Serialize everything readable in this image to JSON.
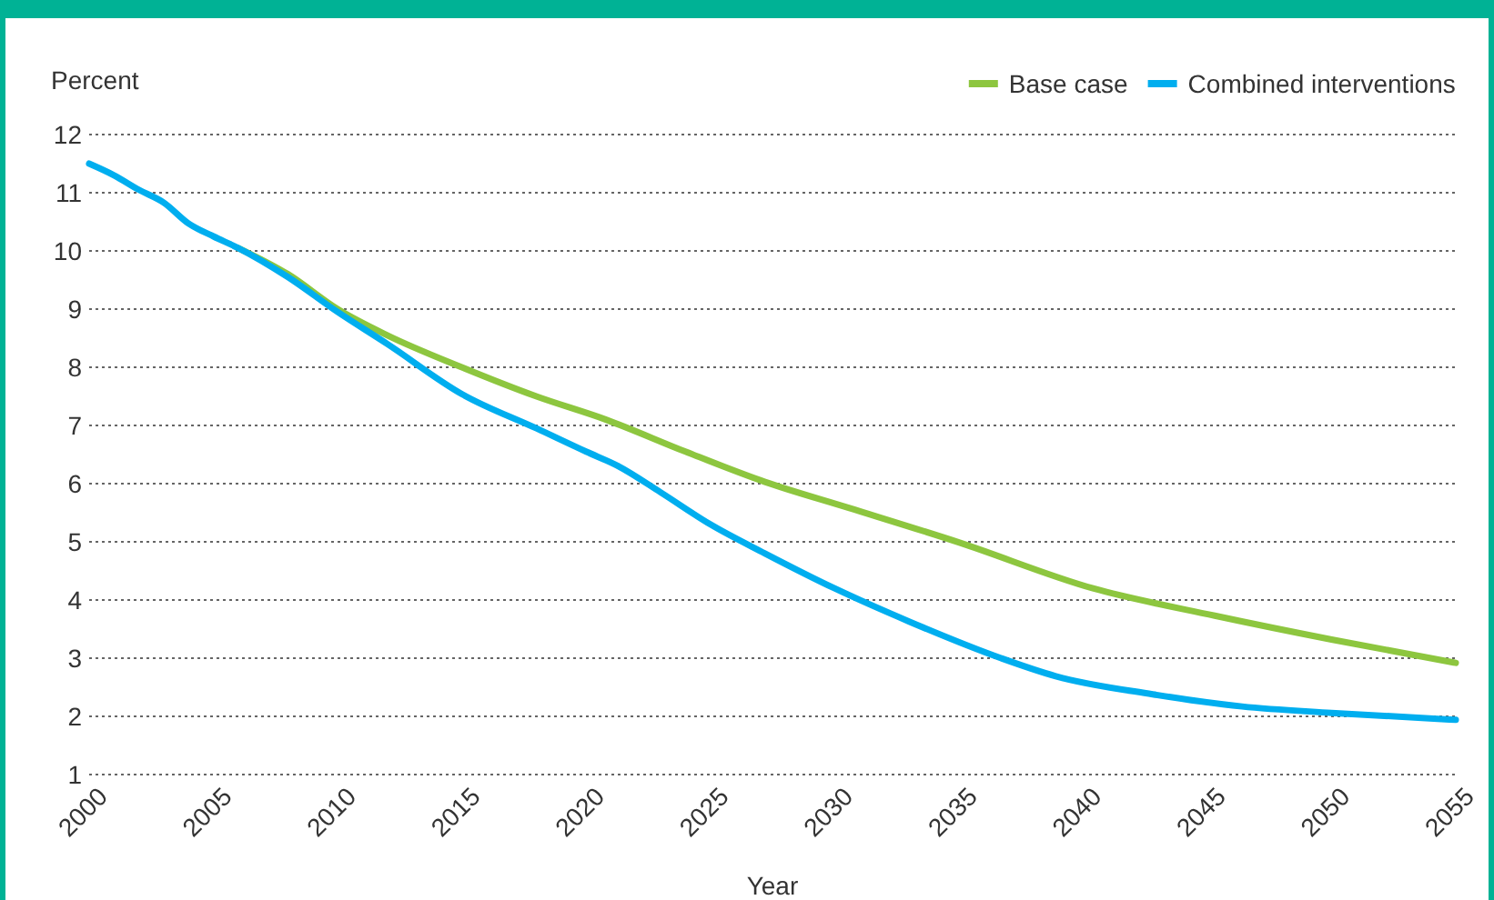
{
  "chart_data": {
    "type": "line",
    "xlabel": "Year",
    "ylabel": "Percent",
    "xlim": [
      2000,
      2055
    ],
    "xticks": [
      2000,
      2005,
      2010,
      2015,
      2020,
      2025,
      2030,
      2035,
      2040,
      2045,
      2050,
      2055
    ],
    "ylim": [
      1,
      12
    ],
    "yticks": [
      1,
      2,
      3,
      4,
      5,
      6,
      7,
      8,
      9,
      10,
      11,
      12
    ],
    "grid": "y",
    "legend": "top right",
    "line_style": "solid",
    "marker": "none",
    "series": [
      {
        "name": "Base case",
        "color": "#8dc63f",
        "x": [
          2006,
          2008,
          2010,
          2012,
          2015,
          2018,
          2020.8,
          2024,
          2027.2,
          2030.6,
          2035,
          2040.4,
          2045.3,
          2050,
          2055
        ],
        "values": [
          10.05,
          9.6,
          9.0,
          8.55,
          8.0,
          7.5,
          7.1,
          6.55,
          6.03,
          5.58,
          4.99,
          4.2,
          3.73,
          3.32,
          2.92
        ]
      },
      {
        "name": "Combined interventions",
        "color": "#00aeef",
        "x": [
          2000,
          2001,
          2002,
          2003,
          2004,
          2005,
          2006,
          2008,
          2010,
          2012,
          2015,
          2018,
          2020,
          2021.3,
          2023,
          2025,
          2027.2,
          2030,
          2033,
          2036.7,
          2038.9,
          2042.8,
          2046.4,
          2050,
          2055
        ],
        "values": [
          11.5,
          11.3,
          11.05,
          10.83,
          10.47,
          10.25,
          10.05,
          9.55,
          8.95,
          8.4,
          7.54,
          6.95,
          6.55,
          6.3,
          5.85,
          5.3,
          4.8,
          4.2,
          3.63,
          3.0,
          2.69,
          2.38,
          2.17,
          2.06,
          1.94
        ]
      }
    ]
  }
}
